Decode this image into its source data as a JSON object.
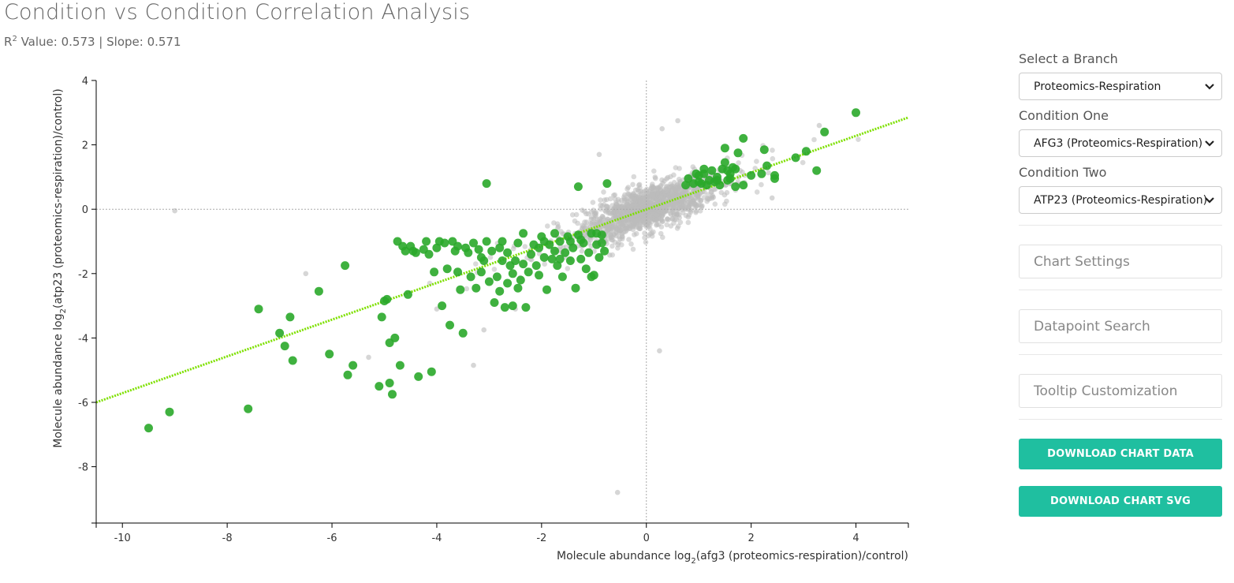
{
  "header": {
    "title": "Condition vs Condition Correlation Analysis",
    "r2_label": "R",
    "r2_sup": "2",
    "stats_text": " Value: 0.573 | Slope: 0.571"
  },
  "chart_data": {
    "type": "scatter",
    "xlabel_prefix": "Molecule abundance log",
    "xlabel_sub": "2",
    "xlabel_suffix": "(afg3 (proteomics-respiration)/control)",
    "ylabel_prefix": "Molecule abundance log",
    "ylabel_sub": "2",
    "ylabel_suffix": "(atp23 (proteomics-respiration)/control)",
    "xlim": [
      -10.5,
      5
    ],
    "ylim": [
      -9.75,
      4
    ],
    "xticks": [
      -10,
      -8,
      -6,
      -4,
      -2,
      0,
      2,
      4
    ],
    "yticks": [
      -8,
      -6,
      -4,
      -2,
      0,
      2,
      4
    ],
    "grid": false,
    "zero_lines": true,
    "regression": {
      "slope": 0.571,
      "x_range": [
        -10.5,
        5
      ],
      "y_range": [
        -6.0,
        2.85
      ]
    },
    "colors": {
      "significant": "#2aa82a",
      "background": "#bbbbbb",
      "regression": "#7ee000",
      "zero_line": "#aaaaaa"
    },
    "significant_points": [
      [
        -9.5,
        -6.8
      ],
      [
        -9.1,
        -6.3
      ],
      [
        -7.6,
        -6.2
      ],
      [
        -7.4,
        -3.1
      ],
      [
        -7.0,
        -3.85
      ],
      [
        -6.9,
        -4.25
      ],
      [
        -6.8,
        -3.35
      ],
      [
        -6.75,
        -4.7
      ],
      [
        -6.25,
        -2.55
      ],
      [
        -6.05,
        -4.5
      ],
      [
        -5.75,
        -1.75
      ],
      [
        -5.7,
        -5.15
      ],
      [
        -5.6,
        -4.85
      ],
      [
        -5.1,
        -5.5
      ],
      [
        -5.0,
        -2.85
      ],
      [
        -5.05,
        -3.35
      ],
      [
        -4.95,
        -2.8
      ],
      [
        -4.9,
        -4.15
      ],
      [
        -4.9,
        -5.4
      ],
      [
        -4.85,
        -5.75
      ],
      [
        -4.8,
        -4.0
      ],
      [
        -4.75,
        -1.0
      ],
      [
        -4.7,
        -4.85
      ],
      [
        -4.65,
        -1.15
      ],
      [
        -4.6,
        -1.3
      ],
      [
        -4.55,
        -2.65
      ],
      [
        -4.5,
        -1.15
      ],
      [
        -4.45,
        -1.3
      ],
      [
        -4.4,
        -1.35
      ],
      [
        -4.35,
        -5.2
      ],
      [
        -4.25,
        -1.25
      ],
      [
        -4.2,
        -1.0
      ],
      [
        -4.15,
        -1.4
      ],
      [
        -4.1,
        -5.05
      ],
      [
        -4.05,
        -1.95
      ],
      [
        -3.95,
        -1.0
      ],
      [
        -3.9,
        -3.0
      ],
      [
        -3.85,
        -1.05
      ],
      [
        -3.8,
        -1.85
      ],
      [
        -3.75,
        -3.6
      ],
      [
        -3.7,
        -1.0
      ],
      [
        -3.65,
        -1.3
      ],
      [
        -3.6,
        -1.95
      ],
      [
        -3.55,
        -2.5
      ],
      [
        -3.5,
        -3.85
      ],
      [
        -3.45,
        -1.2
      ],
      [
        -3.4,
        -1.35
      ],
      [
        -3.35,
        -2.1
      ],
      [
        -3.3,
        -1.05
      ],
      [
        -3.25,
        -2.45
      ],
      [
        -3.2,
        -1.25
      ],
      [
        -3.15,
        -1.95
      ],
      [
        -3.1,
        -1.6
      ],
      [
        -3.05,
        -1.0
      ],
      [
        -3.0,
        -2.25
      ],
      [
        -2.95,
        -1.3
      ],
      [
        -2.9,
        -2.9
      ],
      [
        -2.85,
        -2.1
      ],
      [
        -2.8,
        -1.2
      ],
      [
        -2.75,
        -1.0
      ],
      [
        -2.7,
        -3.05
      ],
      [
        -2.65,
        -2.3
      ],
      [
        -2.6,
        -1.75
      ],
      [
        -2.55,
        -3.0
      ],
      [
        -2.5,
        -1.6
      ],
      [
        -2.45,
        -1.05
      ],
      [
        -2.4,
        -2.2
      ],
      [
        -2.35,
        -0.75
      ],
      [
        -2.3,
        -3.05
      ],
      [
        -2.25,
        -1.95
      ],
      [
        -3.05,
        0.8
      ],
      [
        -2.2,
        -1.4
      ],
      [
        -2.15,
        -1.1
      ],
      [
        -2.1,
        -1.75
      ],
      [
        -2.05,
        -2.05
      ],
      [
        -2.0,
        -0.85
      ],
      [
        -1.95,
        -1.5
      ],
      [
        -1.9,
        -2.5
      ],
      [
        -1.85,
        -1.1
      ],
      [
        -1.8,
        -1.55
      ],
      [
        -1.75,
        -0.75
      ],
      [
        -1.7,
        -1.75
      ],
      [
        -1.65,
        -1.0
      ],
      [
        -1.6,
        -2.1
      ],
      [
        -1.55,
        -1.35
      ],
      [
        -1.5,
        -0.85
      ],
      [
        -1.45,
        -1.6
      ],
      [
        -1.4,
        -1.2
      ],
      [
        -1.35,
        -2.45
      ],
      [
        -1.3,
        -0.8
      ],
      [
        -1.25,
        -1.55
      ],
      [
        -1.2,
        -1.05
      ],
      [
        -1.15,
        -1.85
      ],
      [
        -1.1,
        -1.35
      ],
      [
        -1.05,
        -0.75
      ],
      [
        -1.0,
        -2.05
      ],
      [
        -0.95,
        -1.1
      ],
      [
        -0.9,
        -1.5
      ],
      [
        -0.85,
        -0.8
      ],
      [
        -0.8,
        -1.3
      ],
      [
        -1.3,
        0.7
      ],
      [
        -0.75,
        0.8
      ],
      [
        -2.8,
        -2.55
      ],
      [
        -1.05,
        -2.1
      ],
      [
        -2.65,
        -1.35
      ],
      [
        -2.55,
        -2.0
      ],
      [
        -2.45,
        -2.45
      ],
      [
        -2.35,
        -1.7
      ],
      [
        -2.05,
        -1.2
      ],
      [
        -1.95,
        -1.0
      ],
      [
        -1.75,
        -1.3
      ],
      [
        -1.65,
        -1.55
      ],
      [
        -1.45,
        -1.0
      ],
      [
        -1.25,
        -0.95
      ],
      [
        -0.95,
        -0.75
      ],
      [
        -0.85,
        -1.05
      ],
      [
        -3.6,
        -1.15
      ],
      [
        -4.0,
        -1.2
      ],
      [
        -3.15,
        -1.5
      ],
      [
        -2.75,
        -1.6
      ],
      [
        0.75,
        0.75
      ],
      [
        0.8,
        0.95
      ],
      [
        0.9,
        0.8
      ],
      [
        1.0,
        1.05
      ],
      [
        1.05,
        0.8
      ],
      [
        1.1,
        1.1
      ],
      [
        1.15,
        0.75
      ],
      [
        1.2,
        0.9
      ],
      [
        1.25,
        1.2
      ],
      [
        1.3,
        0.85
      ],
      [
        1.35,
        1.0
      ],
      [
        1.4,
        0.75
      ],
      [
        1.45,
        1.25
      ],
      [
        1.5,
        1.45
      ],
      [
        1.55,
        0.9
      ],
      [
        1.6,
        1.1
      ],
      [
        1.65,
        1.3
      ],
      [
        1.7,
        0.7
      ],
      [
        1.75,
        1.75
      ],
      [
        1.85,
        0.75
      ],
      [
        1.85,
        2.2
      ],
      [
        1.5,
        1.9
      ],
      [
        2.0,
        1.05
      ],
      [
        2.2,
        1.1
      ],
      [
        2.3,
        1.35
      ],
      [
        2.45,
        0.95
      ],
      [
        2.25,
        1.85
      ],
      [
        2.45,
        1.05
      ],
      [
        2.85,
        1.6
      ],
      [
        3.05,
        1.8
      ],
      [
        3.25,
        1.2
      ],
      [
        3.4,
        2.4
      ],
      [
        4.0,
        3.0
      ],
      [
        1.1,
        1.25
      ],
      [
        1.35,
        0.9
      ],
      [
        1.55,
        1.2
      ],
      [
        1.6,
        0.95
      ],
      [
        1.7,
        1.25
      ],
      [
        1.0,
        0.85
      ],
      [
        0.95,
        1.1
      ]
    ]
  },
  "panel": {
    "branch_label": "Select a Branch",
    "branch_value": "Proteomics-Respiration",
    "cond1_label": "Condition One",
    "cond1_value": "AFG3 (Proteomics-Respiration)",
    "cond2_label": "Condition Two",
    "cond2_value": "ATP23 (Proteomics-Respiration)",
    "chart_settings": "Chart Settings",
    "datapoint_search": "Datapoint Search",
    "tooltip_customization": "Tooltip Customization",
    "download_data": "DOWNLOAD CHART DATA",
    "download_svg": "DOWNLOAD CHART SVG"
  }
}
